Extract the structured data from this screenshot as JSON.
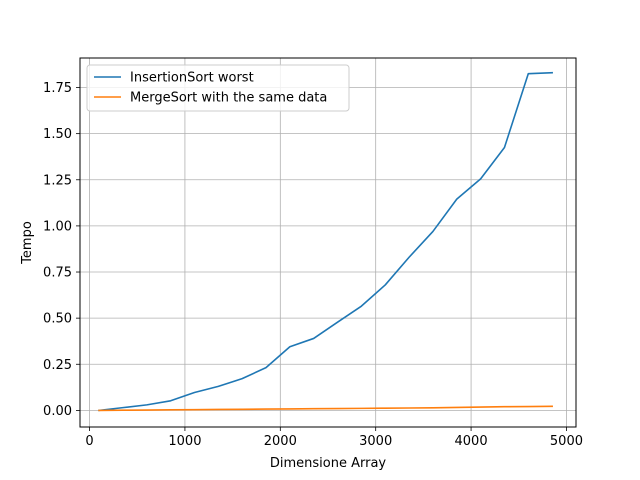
{
  "chart_data": {
    "type": "line",
    "xlabel": "Dimensione Array",
    "ylabel": "Tempo",
    "xlim": [
      -100,
      5100
    ],
    "ylim": [
      -0.09,
      1.91
    ],
    "xticks": [
      0,
      1000,
      2000,
      3000,
      4000,
      5000
    ],
    "yticks": [
      0.0,
      0.25,
      0.5,
      0.75,
      1.0,
      1.25,
      1.5,
      1.75
    ],
    "xtick_labels": [
      "0",
      "1000",
      "2000",
      "3000",
      "4000",
      "5000"
    ],
    "ytick_labels": [
      "0.00",
      "0.25",
      "0.50",
      "0.75",
      "1.00",
      "1.25",
      "1.50",
      "1.75"
    ],
    "grid": true,
    "legend_position": "top-left",
    "series": [
      {
        "name": "InsertionSort worst",
        "color": "#1f77b4",
        "x": [
          100,
          350,
          600,
          850,
          1100,
          1350,
          1600,
          1850,
          2100,
          2350,
          2600,
          2850,
          3100,
          3350,
          3600,
          3850,
          4100,
          4350,
          4600,
          4850
        ],
        "y": [
          0.0,
          0.015,
          0.03,
          0.052,
          0.097,
          0.13,
          0.172,
          0.232,
          0.345,
          0.39,
          0.478,
          0.565,
          0.68,
          0.83,
          0.97,
          1.145,
          1.255,
          1.425,
          1.825,
          1.83
        ]
      },
      {
        "name": "MergeSort with the same data",
        "color": "#ff7f0e",
        "x": [
          100,
          350,
          600,
          850,
          1100,
          1350,
          1600,
          1850,
          2100,
          2350,
          2600,
          2850,
          3100,
          3350,
          3600,
          3850,
          4100,
          4350,
          4600,
          4850
        ],
        "y": [
          0.0,
          0.001,
          0.002,
          0.003,
          0.004,
          0.005,
          0.006,
          0.007,
          0.008,
          0.009,
          0.01,
          0.011,
          0.012,
          0.013,
          0.014,
          0.016,
          0.018,
          0.02,
          0.021,
          0.022
        ]
      }
    ]
  }
}
